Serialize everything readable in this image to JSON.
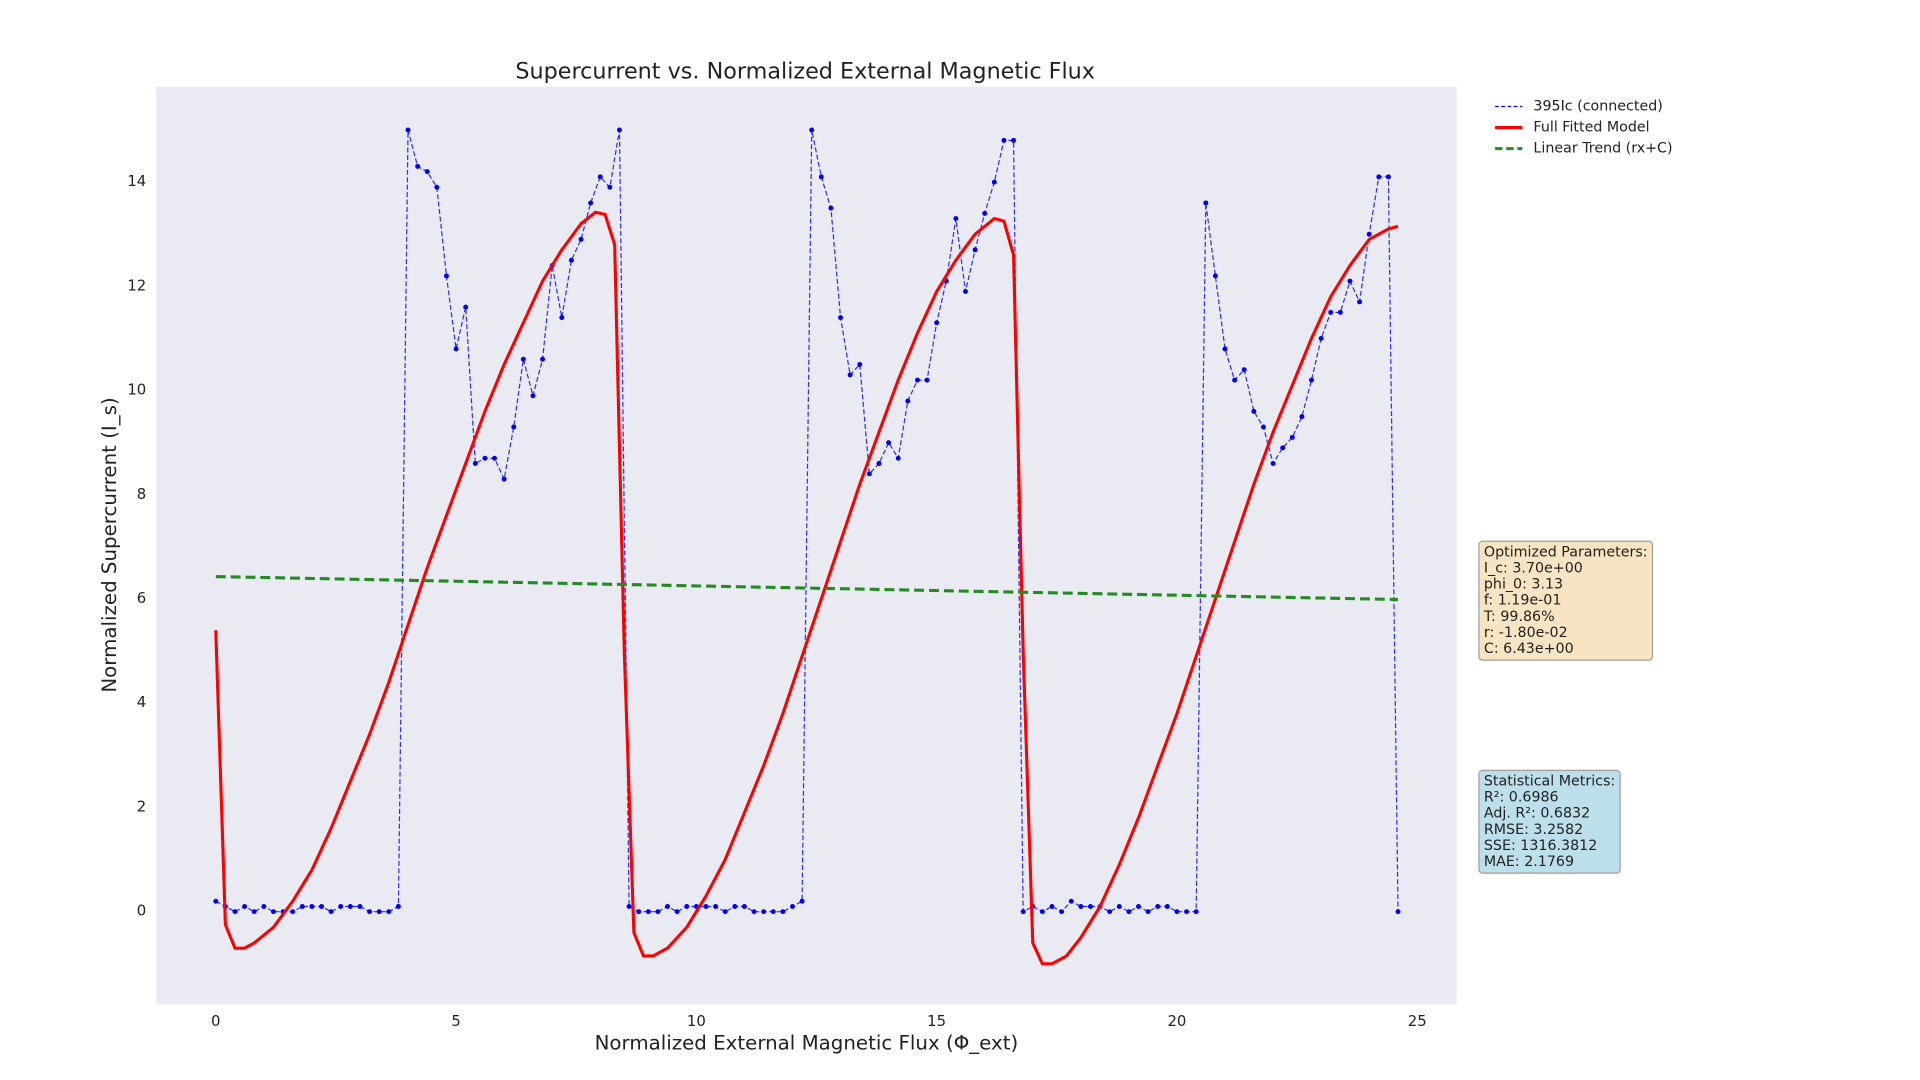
{
  "chart_data": {
    "type": "line",
    "title": "Supercurrent vs. Normalized External Magnetic Flux",
    "xlabel": "Normalized External Magnetic Flux (Φ_ext)",
    "ylabel": "Normalized Supercurrent (I_s)",
    "xlim": [
      -1.24,
      25.82
    ],
    "ylim": [
      -1.78,
      15.83
    ],
    "xticks": [
      0,
      5,
      10,
      15,
      20,
      25
    ],
    "yticks": [
      0,
      2,
      4,
      6,
      8,
      10,
      12,
      14
    ],
    "grid": false,
    "legend": "outside-upper-right",
    "series": [
      {
        "name": "395Ic (connected)",
        "color": "#0000ff",
        "linestyle": "dashed",
        "marker": true,
        "x": [
          0,
          0.2,
          0.4,
          0.6,
          0.8,
          1.0,
          1.2,
          1.4,
          1.6,
          1.8,
          2.0,
          2.2,
          2.4,
          2.6,
          2.8,
          3.0,
          3.2,
          3.4,
          3.6,
          3.8,
          4.0,
          4.2,
          4.4,
          4.6,
          4.8,
          5.0,
          5.2,
          5.4,
          5.6,
          5.8,
          6.0,
          6.2,
          6.4,
          6.6,
          6.8,
          7.0,
          7.2,
          7.4,
          7.6,
          7.8,
          8.0,
          8.2,
          8.4,
          8.6,
          8.8,
          9.0,
          9.2,
          9.4,
          9.6,
          9.8,
          10.0,
          10.2,
          10.4,
          10.6,
          10.8,
          11.0,
          11.2,
          11.4,
          11.6,
          11.8,
          12.0,
          12.2,
          12.4,
          12.6,
          12.8,
          13.0,
          13.2,
          13.4,
          13.6,
          13.8,
          14.0,
          14.2,
          14.4,
          14.6,
          14.8,
          15.0,
          15.2,
          15.4,
          15.6,
          15.8,
          16.0,
          16.2,
          16.4,
          16.6,
          16.8,
          17.0,
          17.2,
          17.4,
          17.6,
          17.8,
          18.0,
          18.2,
          18.4,
          18.6,
          18.8,
          19.0,
          19.2,
          19.4,
          19.6,
          19.8,
          20.0,
          20.2,
          20.4,
          20.6,
          20.8,
          21.0,
          21.2,
          21.4,
          21.6,
          21.8,
          22.0,
          22.2,
          22.4,
          22.6,
          22.8,
          23.0,
          23.2,
          23.4,
          23.6,
          23.8,
          24.0,
          24.2,
          24.4,
          24.6
        ],
        "values": [
          0.2,
          0.1,
          0,
          0.1,
          0,
          0.1,
          0,
          0,
          0,
          0.1,
          0.1,
          0.1,
          0,
          0.1,
          0.1,
          0.1,
          0,
          0,
          0,
          0.1,
          15.0,
          14.3,
          14.2,
          13.9,
          12.2,
          10.8,
          11.6,
          8.6,
          8.7,
          8.7,
          8.3,
          9.3,
          10.6,
          9.9,
          10.6,
          12.4,
          11.4,
          12.5,
          12.9,
          13.6,
          14.1,
          13.9,
          15.0,
          0.1,
          0,
          0,
          0,
          0.1,
          0,
          0.1,
          0.1,
          0.1,
          0.1,
          0,
          0.1,
          0.1,
          0,
          0,
          0,
          0,
          0.1,
          0.2,
          15.0,
          14.1,
          13.5,
          11.4,
          10.3,
          10.5,
          8.4,
          8.6,
          9.0,
          8.7,
          9.8,
          10.2,
          10.2,
          11.3,
          12.1,
          13.3,
          11.9,
          12.7,
          13.4,
          14.0,
          14.8,
          14.8,
          0,
          0.1,
          0,
          0.1,
          0,
          0.2,
          0.1,
          0.1,
          0.1,
          0,
          0.1,
          0,
          0.1,
          0,
          0.1,
          0.1,
          0,
          0,
          0,
          13.6,
          12.2,
          10.8,
          10.2,
          10.4,
          9.6,
          9.3,
          8.6,
          8.9,
          9.1,
          9.5,
          10.2,
          11.0,
          11.5,
          11.5,
          12.1,
          11.7,
          13.0,
          14.1,
          14.1,
          0
        ]
      },
      {
        "name": "Full Fitted Model",
        "color": "#ff0000",
        "linestyle": "solid",
        "marker": false,
        "x": [
          0,
          0.2,
          0.4,
          0.6,
          0.8,
          1.2,
          1.6,
          2.0,
          2.4,
          2.8,
          3.2,
          3.6,
          4.0,
          4.4,
          4.8,
          5.2,
          5.6,
          6.0,
          6.4,
          6.8,
          7.2,
          7.6,
          7.9,
          8.1,
          8.3,
          8.5,
          8.7,
          8.9,
          9.1,
          9.4,
          9.8,
          10.2,
          10.6,
          11.0,
          11.4,
          11.8,
          12.2,
          12.6,
          13.0,
          13.4,
          13.8,
          14.2,
          14.6,
          15.0,
          15.4,
          15.8,
          16.2,
          16.4,
          16.6,
          16.8,
          17.0,
          17.2,
          17.4,
          17.7,
          18.0,
          18.4,
          18.8,
          19.2,
          19.6,
          20.0,
          20.4,
          20.8,
          21.2,
          21.6,
          22.0,
          22.4,
          22.8,
          23.2,
          23.6,
          24.0,
          24.4,
          24.6
        ],
        "values": [
          5.4,
          -0.25,
          -0.7,
          -0.7,
          -0.6,
          -0.3,
          0.2,
          0.8,
          1.6,
          2.5,
          3.4,
          4.4,
          5.5,
          6.6,
          7.6,
          8.6,
          9.6,
          10.5,
          11.3,
          12.1,
          12.7,
          13.2,
          13.42,
          13.38,
          12.8,
          5.0,
          -0.4,
          -0.85,
          -0.85,
          -0.7,
          -0.3,
          0.3,
          1.0,
          1.9,
          2.8,
          3.8,
          4.9,
          6.0,
          7.1,
          8.2,
          9.2,
          10.2,
          11.1,
          11.9,
          12.5,
          13.0,
          13.3,
          13.25,
          12.6,
          5.0,
          -0.6,
          -1.0,
          -1.0,
          -0.85,
          -0.5,
          0.1,
          0.9,
          1.8,
          2.8,
          3.8,
          4.9,
          6.0,
          7.1,
          8.2,
          9.2,
          10.1,
          11.0,
          11.8,
          12.4,
          12.9,
          13.1,
          13.15
        ]
      },
      {
        "name": "Linear Trend (rx+C)",
        "color": "#228b22",
        "linestyle": "dashed",
        "marker": false,
        "x": [
          0,
          24.6
        ],
        "values": [
          6.43,
          5.99
        ]
      }
    ],
    "annotations": [
      {
        "color": "#f5deb3",
        "lines": [
          "Optimized Parameters:",
          "I_c: 3.70e+00",
          "phi_0: 3.13",
          "f: 1.19e-01",
          "T: 99.86%",
          "r: -1.80e-02",
          "C: 6.43e+00"
        ]
      },
      {
        "color": "#add8e6",
        "lines": [
          "Statistical Metrics:",
          "R²: 0.6986",
          "Adj. R²: 0.6832",
          "RMSE: 3.2582",
          "SSE: 1316.3812",
          "MAE: 2.1769"
        ]
      }
    ]
  }
}
